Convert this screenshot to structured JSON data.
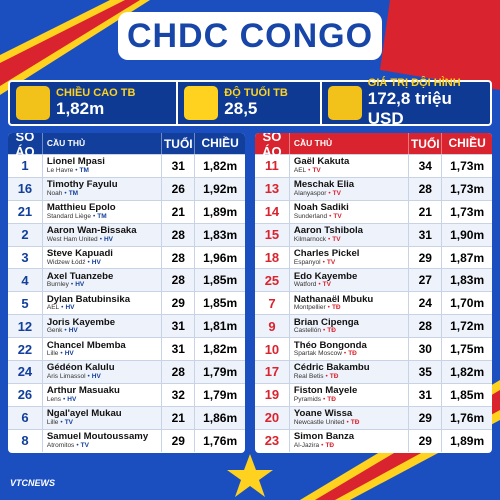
{
  "title": "CHDC CONGO",
  "stats": [
    {
      "label": "CHIỀU CAO TB",
      "value": "1,82m"
    },
    {
      "label": "ĐỘ TUỔI TB",
      "value": "28,5"
    },
    {
      "label": "GIÁ TRỊ ĐỘI HÌNH",
      "value": "172,8 triệu USD"
    }
  ],
  "tables": [
    {
      "columns": [
        "SỐ ÁO",
        "CẦU THỦ",
        "TUỔI",
        "CHIỀU CAO"
      ],
      "rows": [
        {
          "number": 1,
          "name": "Lionel Mpasi",
          "club": "Le Havre",
          "position": "TM",
          "age": 31,
          "height": "1,82m"
        },
        {
          "number": 16,
          "name": "Timothy Fayulu",
          "club": "Noah",
          "position": "TM",
          "age": 26,
          "height": "1,92m"
        },
        {
          "number": 21,
          "name": "Matthieu Epolo",
          "club": "Standard Liège",
          "position": "TM",
          "age": 21,
          "height": "1,89m"
        },
        {
          "number": 2,
          "name": "Aaron Wan-Bissaka",
          "club": "West Ham United",
          "position": "HV",
          "age": 28,
          "height": "1,83m"
        },
        {
          "number": 3,
          "name": "Steve Kapuadi",
          "club": "Widzew Łódź",
          "position": "HV",
          "age": 28,
          "height": "1,96m"
        },
        {
          "number": 4,
          "name": "Axel Tuanzebe",
          "club": "Burnley",
          "position": "HV",
          "age": 28,
          "height": "1,85m"
        },
        {
          "number": 5,
          "name": "Dylan Batubinsika",
          "club": "AEL",
          "position": "HV",
          "age": 29,
          "height": "1,85m"
        },
        {
          "number": 12,
          "name": "Joris Kayembe",
          "club": "Genk",
          "position": "HV",
          "age": 31,
          "height": "1,81m"
        },
        {
          "number": 22,
          "name": "Chancel Mbemba",
          "club": "Lille",
          "position": "HV",
          "age": 31,
          "height": "1,82m"
        },
        {
          "number": 24,
          "name": "Gédéon Kalulu",
          "club": "Aris Limassol",
          "position": "HV",
          "age": 28,
          "height": "1,79m"
        },
        {
          "number": 26,
          "name": "Arthur Masuaku",
          "club": "Lens",
          "position": "HV",
          "age": 32,
          "height": "1,79m"
        },
        {
          "number": 6,
          "name": "Ngal'ayel Mukau",
          "club": "Lille",
          "position": "TV",
          "age": 21,
          "height": "1,86m"
        },
        {
          "number": 8,
          "name": "Samuel Moutoussamy",
          "club": "Atromitos",
          "position": "TV",
          "age": 29,
          "height": "1,76m"
        }
      ]
    },
    {
      "columns": [
        "SỐ ÁO",
        "CẦU THỦ",
        "TUỔI",
        "CHIỀU CAO"
      ],
      "rows": [
        {
          "number": 11,
          "name": "Gaël Kakuta",
          "club": "AEL",
          "position": "TV",
          "age": 34,
          "height": "1,73m"
        },
        {
          "number": 13,
          "name": "Meschak Elia",
          "club": "Alanyaspor",
          "position": "TV",
          "age": 28,
          "height": "1,73m"
        },
        {
          "number": 14,
          "name": "Noah Sadiki",
          "club": "Sunderland",
          "position": "TV",
          "age": 21,
          "height": "1,73m"
        },
        {
          "number": 15,
          "name": "Aaron Tshibola",
          "club": "Kilmarnock",
          "position": "TV",
          "age": 31,
          "height": "1,90m"
        },
        {
          "number": 18,
          "name": "Charles Pickel",
          "club": "Espanyol",
          "position": "TV",
          "age": 29,
          "height": "1,87m"
        },
        {
          "number": 25,
          "name": "Edo Kayembe",
          "club": "Watford",
          "position": "TV",
          "age": 27,
          "height": "1,83m"
        },
        {
          "number": 7,
          "name": "Nathanaël Mbuku",
          "club": "Montpellier",
          "position": "TĐ",
          "age": 24,
          "height": "1,70m"
        },
        {
          "number": 9,
          "name": "Brian Cipenga",
          "club": "Castellón",
          "position": "TĐ",
          "age": 28,
          "height": "1,72m"
        },
        {
          "number": 10,
          "name": "Théo Bongonda",
          "club": "Spartak Moscow",
          "position": "TĐ",
          "age": 30,
          "height": "1,75m"
        },
        {
          "number": 17,
          "name": "Cédric Bakambu",
          "club": "Real Betis",
          "position": "TĐ",
          "age": 35,
          "height": "1,82m"
        },
        {
          "number": 19,
          "name": "Fiston Mayele",
          "club": "Pyramids",
          "position": "TĐ",
          "age": 31,
          "height": "1,85m"
        },
        {
          "number": 20,
          "name": "Yoane Wissa",
          "club": "Newcastle United",
          "position": "TĐ",
          "age": 29,
          "height": "1,76m"
        },
        {
          "number": 23,
          "name": "Simon Banza",
          "club": "Al-Jazira",
          "position": "TĐ",
          "age": 29,
          "height": "1,89m"
        }
      ]
    }
  ],
  "logo": "VTCNEWS"
}
